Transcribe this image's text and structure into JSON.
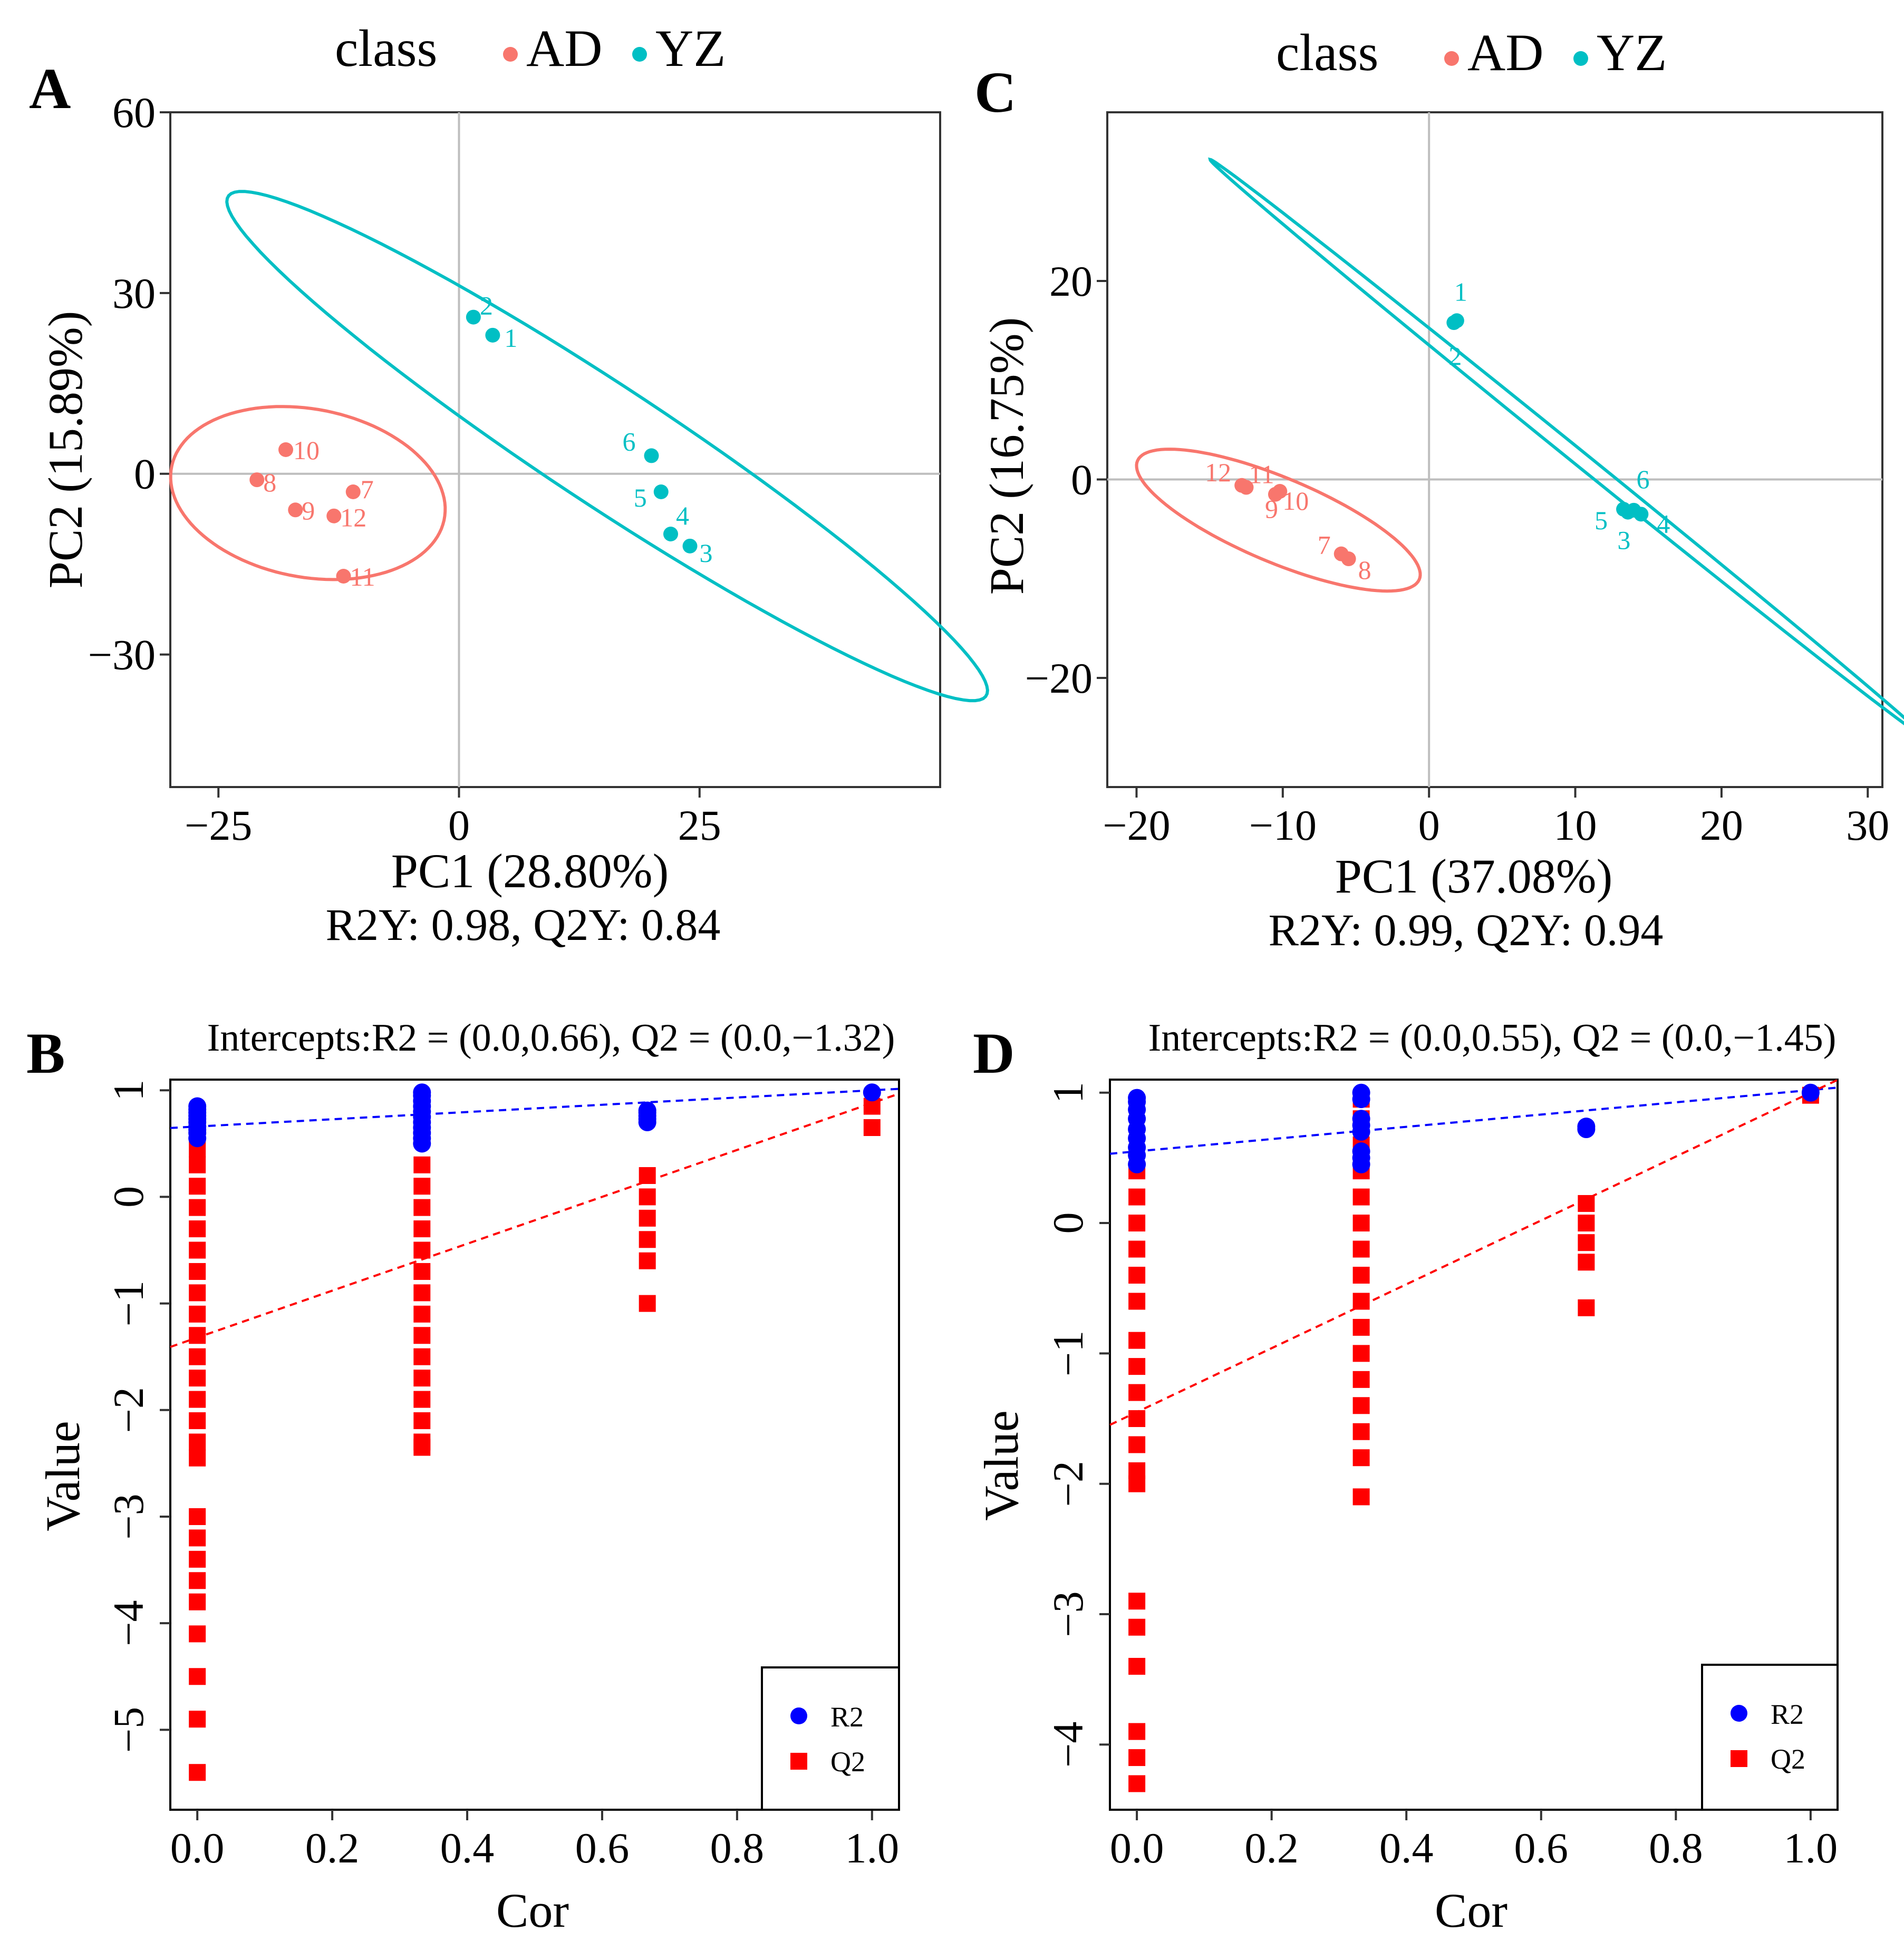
{
  "figure": {
    "panels": [
      {
        "letter": "A",
        "legend_title": "class",
        "group1": "AD",
        "group2": "YZ",
        "xlabel": "PC1 (28.80%)",
        "ylabel": "PC2 (15.89%)",
        "metric": "R2Y: 0.98, Q2Y: 0.84"
      },
      {
        "letter": "C",
        "legend_title": "class",
        "group1": "AD",
        "group2": "YZ",
        "xlabel": "PC1 (37.08%)",
        "ylabel": "PC2 (16.75%)",
        "metric": "R2Y: 0.99, Q2Y: 0.94"
      },
      {
        "letter": "B",
        "title": "Intercepts:R2 = (0.0,0.66), Q2 = (0.0,−1.32)",
        "xlabel": "Cor",
        "ylabel": "Value",
        "legend_r2": "R2",
        "legend_q2": "Q2"
      },
      {
        "letter": "D",
        "title": "Intercepts:R2 = (0.0,0.55), Q2 = (0.0,−1.45)",
        "xlabel": "Cor",
        "ylabel": "Value",
        "legend_r2": "R2",
        "legend_q2": "Q2"
      }
    ]
  },
  "colors": {
    "AD": "#F8766D",
    "YZ": "#00BFC4",
    "R2": "#0000FF",
    "Q2": "#FF0000",
    "zero_line": "#BEBEBE"
  },
  "chart_data": [
    {
      "id": "A",
      "type": "scatter",
      "title": "",
      "xlabel": "PC1 (28.80%)",
      "ylabel": "PC2 (15.89%)",
      "xlim": [
        -30,
        50
      ],
      "ylim": [
        -52,
        60
      ],
      "xticks": [
        -25,
        0,
        25
      ],
      "xtick_labels": [
        "−25",
        "0",
        "25"
      ],
      "yticks": [
        -30,
        0,
        30,
        60
      ],
      "ytick_labels": [
        "−30",
        "0",
        "30",
        "60"
      ],
      "legend_title": "class",
      "series": [
        {
          "name": "AD",
          "points": [
            {
              "label": "7",
              "x": -11,
              "y": -3
            },
            {
              "label": "8",
              "x": -21,
              "y": -1
            },
            {
              "label": "9",
              "x": -17,
              "y": -6
            },
            {
              "label": "10",
              "x": -18,
              "y": 4
            },
            {
              "label": "11",
              "x": -12,
              "y": -17
            },
            {
              "label": "12",
              "x": -13,
              "y": -7
            }
          ]
        },
        {
          "name": "YZ",
          "points": [
            {
              "label": "1",
              "x": 3.5,
              "y": 23
            },
            {
              "label": "2",
              "x": 1.5,
              "y": 26
            },
            {
              "label": "3",
              "x": 24,
              "y": -12
            },
            {
              "label": "4",
              "x": 22,
              "y": -10
            },
            {
              "label": "5",
              "x": 21,
              "y": -3
            },
            {
              "label": "6",
              "x": 20,
              "y": 3
            }
          ]
        }
      ],
      "ellipses": [
        {
          "group": "AD",
          "center": [
            -15.7,
            -3.2
          ],
          "semi_axes": [
            12.9,
            15.6
          ],
          "rotation_deg": 44
        },
        {
          "group": "YZ",
          "center": [
            15.4,
            4.6
          ],
          "semi_axes": [
            8.1,
            57.3
          ],
          "rotation_deg": 43
        }
      ],
      "metric": "R2Y: 0.98, Q2Y: 0.84"
    },
    {
      "id": "C",
      "type": "scatter",
      "title": "",
      "xlabel": "PC1 (37.08%)",
      "ylabel": "PC2 (16.75%)",
      "xlim": [
        -22,
        31
      ],
      "ylim": [
        -31,
        37
      ],
      "xticks": [
        -20,
        -10,
        0,
        10,
        20,
        30
      ],
      "xtick_labels": [
        "−20",
        "−10",
        "0",
        "10",
        "20",
        "30"
      ],
      "yticks": [
        -20,
        0,
        20
      ],
      "ytick_labels": [
        "−20",
        "0",
        "20"
      ],
      "legend_title": "class",
      "series": [
        {
          "name": "AD",
          "points": [
            {
              "label": "7",
              "x": -6,
              "y": -7.5
            },
            {
              "label": "8",
              "x": -5.5,
              "y": -8
            },
            {
              "label": "9",
              "x": -10.5,
              "y": -1.5
            },
            {
              "label": "10",
              "x": -10.2,
              "y": -1.2
            },
            {
              "label": "11",
              "x": -12.5,
              "y": -0.8
            },
            {
              "label": "12",
              "x": -12.8,
              "y": -0.6
            }
          ]
        },
        {
          "name": "YZ",
          "points": [
            {
              "label": "1",
              "x": 1.9,
              "y": 16
            },
            {
              "label": "2",
              "x": 1.7,
              "y": 15.8
            },
            {
              "label": "3",
              "x": 13.6,
              "y": -3.3
            },
            {
              "label": "4",
              "x": 14.5,
              "y": -3.5
            },
            {
              "label": "5",
              "x": 13.3,
              "y": -3
            },
            {
              "label": "6",
              "x": 14,
              "y": -3.1
            }
          ]
        }
      ],
      "ellipses": [
        {
          "group": "AD",
          "center": [
            -10.3,
            -4.1
          ],
          "semi_axes": [
            11.4,
            3.9
          ],
          "rotation_deg": -34
        },
        {
          "group": "YZ",
          "center": [
            9.4,
            3.2
          ],
          "semi_axes": [
            0.6,
            37.9
          ],
          "rotation_deg": 40
        }
      ],
      "metric": "R2Y: 0.99, Q2Y: 0.94"
    },
    {
      "id": "B",
      "type": "scatter",
      "title": "Intercepts:R2 = (0.0,0.66), Q2 = (0.0,−1.32)",
      "xlabel": "Cor",
      "ylabel": "Value",
      "xlim": [
        -0.04,
        1.04
      ],
      "ylim": [
        -5.75,
        1.1
      ],
      "xticks": [
        0,
        0.2,
        0.4,
        0.6,
        0.8,
        1.0
      ],
      "xtick_labels": [
        "0.0",
        "0.2",
        "0.4",
        "0.6",
        "0.8",
        "1.0"
      ],
      "yticks": [
        -5,
        -4,
        -3,
        -2,
        -1,
        0,
        1
      ],
      "ytick_labels": [
        "−5",
        "−4",
        "−3",
        "−2",
        "−1",
        "0",
        "1"
      ],
      "series": [
        {
          "name": "R2",
          "x": 0.0,
          "values": [
            0.55,
            0.6,
            0.63,
            0.66,
            0.7,
            0.73,
            0.76,
            0.79,
            0.82,
            0.85
          ]
        },
        {
          "name": "R2",
          "x": 0.333,
          "values": [
            0.5,
            0.55,
            0.6,
            0.65,
            0.7,
            0.75,
            0.8,
            0.85,
            0.9,
            0.95,
            0.98
          ]
        },
        {
          "name": "R2",
          "x": 0.667,
          "values": [
            0.7,
            0.73,
            0.76,
            0.79,
            0.81
          ]
        },
        {
          "name": "R2",
          "x": 1.0,
          "values": [
            0.98
          ]
        },
        {
          "name": "Q2",
          "x": 0.0,
          "values": [
            0.45,
            0.3,
            0.1,
            -0.1,
            -0.3,
            -0.5,
            -0.7,
            -0.9,
            -1.1,
            -1.3,
            -1.5,
            -1.7,
            -1.9,
            -2.1,
            -2.3,
            -2.45,
            -3.0,
            -3.2,
            -3.4,
            -3.6,
            -3.8,
            -4.1,
            -4.5,
            -4.9,
            -5.4
          ]
        },
        {
          "name": "Q2",
          "x": 0.333,
          "values": [
            0.9,
            0.75,
            0.55,
            0.3,
            0.1,
            -0.1,
            -0.3,
            -0.5,
            -0.7,
            -0.9,
            -1.1,
            -1.3,
            -1.5,
            -1.7,
            -1.9,
            -2.1,
            -2.3,
            -2.35
          ]
        },
        {
          "name": "Q2",
          "x": 0.667,
          "values": [
            0.2,
            0.0,
            -0.2,
            -0.4,
            -0.6,
            -1.0
          ]
        },
        {
          "name": "Q2",
          "x": 1.0,
          "values": [
            0.85,
            0.65
          ]
        }
      ],
      "fit_lines": [
        {
          "name": "R2",
          "intercept": 0.66,
          "slope": 0.34
        },
        {
          "name": "Q2",
          "intercept": -1.32,
          "slope": 2.2
        }
      ],
      "legend": [
        "R2",
        "Q2"
      ]
    },
    {
      "id": "D",
      "type": "scatter",
      "title": "Intercepts:R2 = (0.0,0.55), Q2 = (0.0,−1.45)",
      "xlabel": "Cor",
      "ylabel": "Value",
      "xlim": [
        -0.04,
        1.04
      ],
      "ylim": [
        -4.5,
        1.1
      ],
      "xticks": [
        0,
        0.2,
        0.4,
        0.6,
        0.8,
        1.0
      ],
      "xtick_labels": [
        "0.0",
        "0.2",
        "0.4",
        "0.6",
        "0.8",
        "1.0"
      ],
      "yticks": [
        -4,
        -3,
        -2,
        -1,
        0,
        1
      ],
      "ytick_labels": [
        "−4",
        "−3",
        "−2",
        "−1",
        "0",
        "1"
      ],
      "series": [
        {
          "name": "R2",
          "x": 0.0,
          "values": [
            0.45,
            0.52,
            0.58,
            0.65,
            0.72,
            0.8,
            0.87,
            0.93,
            0.96
          ]
        },
        {
          "name": "R2",
          "x": 0.333,
          "values": [
            0.45,
            0.5,
            0.55,
            0.7,
            0.75,
            0.8,
            0.95,
            1.0
          ]
        },
        {
          "name": "R2",
          "x": 0.667,
          "values": [
            0.72,
            0.74
          ]
        },
        {
          "name": "R2",
          "x": 1.0,
          "values": [
            1.0
          ]
        },
        {
          "name": "Q2",
          "x": 0.0,
          "values": [
            0.4,
            0.2,
            0.0,
            -0.2,
            -0.4,
            -0.6,
            -0.9,
            -1.1,
            -1.3,
            -1.5,
            -1.7,
            -1.9,
            -2.0,
            -2.9,
            -3.1,
            -3.4,
            -3.9,
            -4.1,
            -4.3
          ]
        },
        {
          "name": "Q2",
          "x": 0.333,
          "values": [
            0.95,
            0.8,
            0.6,
            0.4,
            0.2,
            0.0,
            -0.2,
            -0.4,
            -0.6,
            -0.8,
            -1.0,
            -1.2,
            -1.4,
            -1.6,
            -1.8,
            -2.1
          ]
        },
        {
          "name": "Q2",
          "x": 0.667,
          "values": [
            0.15,
            0.0,
            -0.15,
            -0.3,
            -0.65
          ]
        },
        {
          "name": "Q2",
          "x": 1.0,
          "values": [
            0.98
          ]
        }
      ],
      "fit_lines": [
        {
          "name": "R2",
          "intercept": 0.55,
          "slope": 0.47
        },
        {
          "name": "Q2",
          "intercept": -1.45,
          "slope": 2.45
        }
      ],
      "legend": [
        "R2",
        "Q2"
      ]
    }
  ]
}
